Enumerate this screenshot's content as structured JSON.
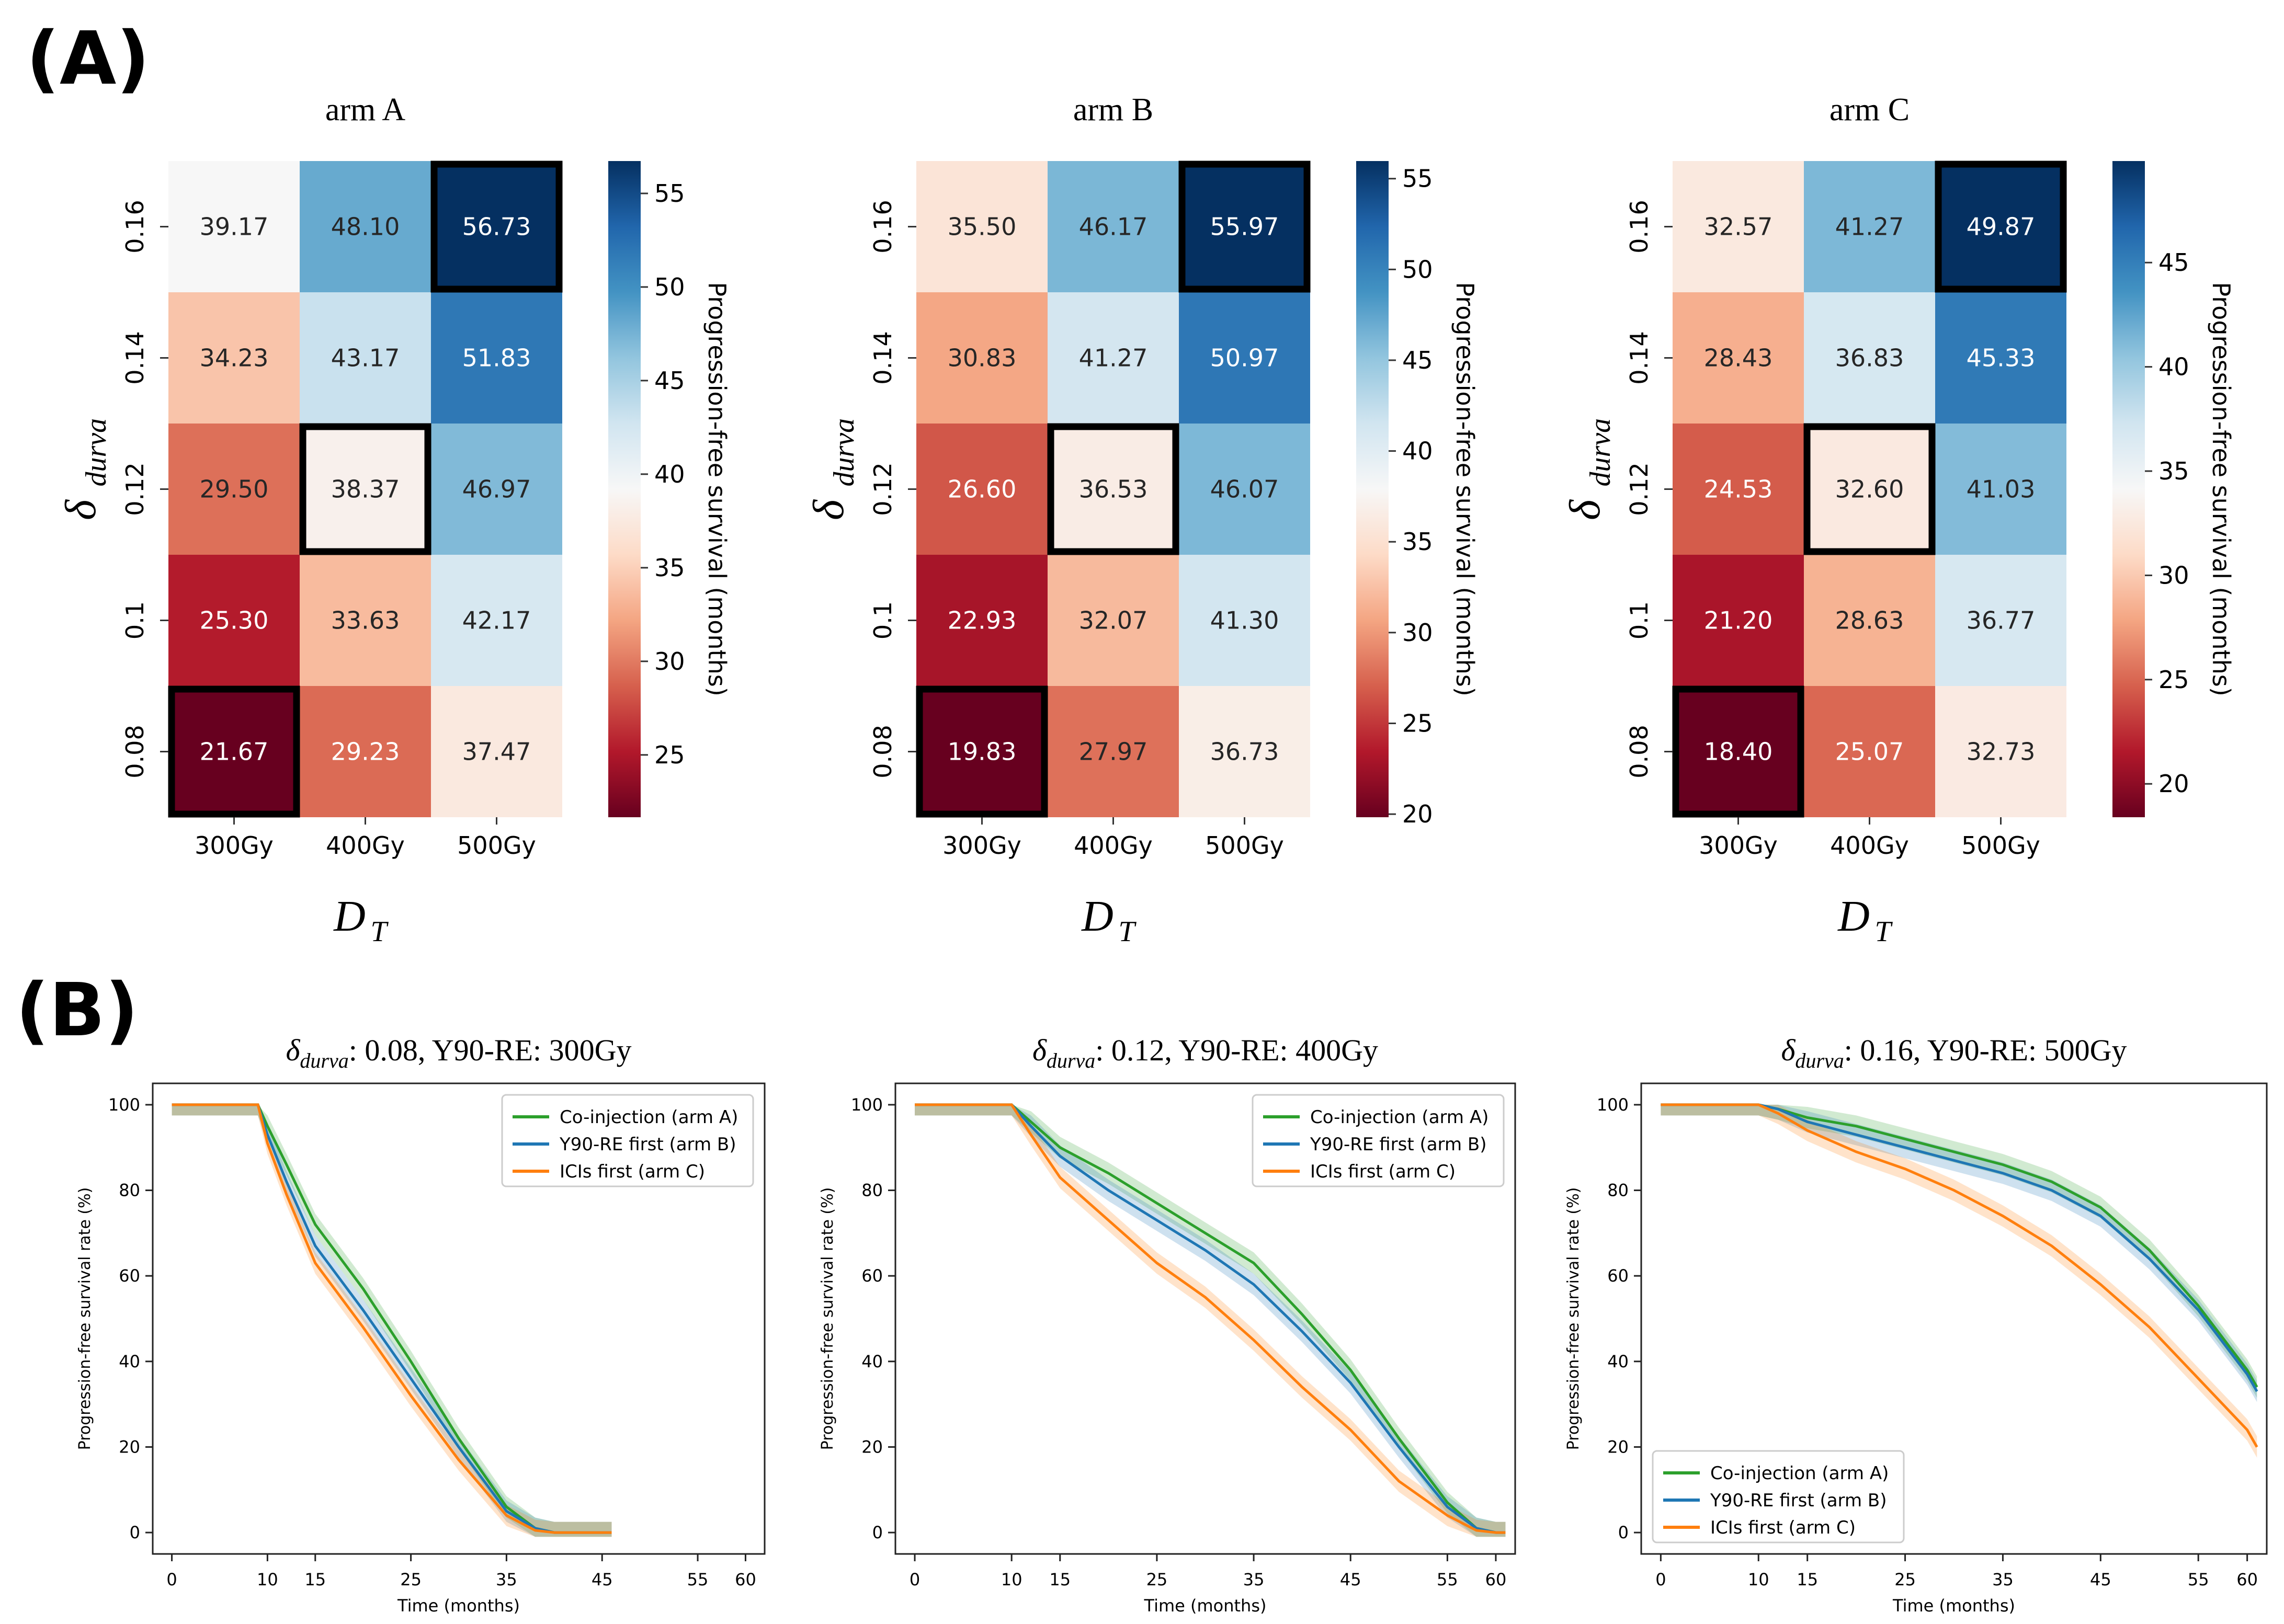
{
  "panel_labels": {
    "a": "(A)",
    "b": "(B)"
  },
  "chart_data": [
    {
      "type": "heatmap",
      "title": "arm A",
      "xlabel": "D",
      "xlabel_sub": "T",
      "ylabel": "δ",
      "ylabel_sub": "durva",
      "x_categories": [
        "300Gy",
        "400Gy",
        "500Gy"
      ],
      "y_categories": [
        "0.16",
        "0.14",
        "0.12",
        "0.1",
        "0.08"
      ],
      "values": [
        [
          39.17,
          48.1,
          56.73
        ],
        [
          34.23,
          43.17,
          51.83
        ],
        [
          29.5,
          38.37,
          46.97
        ],
        [
          25.3,
          33.63,
          42.17
        ],
        [
          21.67,
          29.23,
          37.47
        ]
      ],
      "labels": [
        [
          "39.17",
          "48.10",
          "56.73"
        ],
        [
          "34.23",
          "43.17",
          "51.83"
        ],
        [
          "29.50",
          "38.37",
          "46.97"
        ],
        [
          "25.30",
          "33.63",
          "42.17"
        ],
        [
          "21.67",
          "29.23",
          "37.47"
        ]
      ],
      "highlighted": [
        [
          0,
          2
        ],
        [
          2,
          1
        ],
        [
          4,
          0
        ]
      ],
      "colorbar": {
        "label": "Progression-free survival (months)",
        "range": [
          21.67,
          56.73
        ],
        "ticks": [
          "25",
          "30",
          "35",
          "40",
          "45",
          "50",
          "55"
        ]
      }
    },
    {
      "type": "heatmap",
      "title": "arm B",
      "xlabel": "D",
      "xlabel_sub": "T",
      "ylabel": "δ",
      "ylabel_sub": "durva",
      "x_categories": [
        "300Gy",
        "400Gy",
        "500Gy"
      ],
      "y_categories": [
        "0.16",
        "0.14",
        "0.12",
        "0.1",
        "0.08"
      ],
      "values": [
        [
          35.5,
          46.17,
          55.97
        ],
        [
          30.83,
          41.27,
          50.97
        ],
        [
          26.6,
          36.53,
          46.07
        ],
        [
          22.93,
          32.07,
          41.3
        ],
        [
          19.83,
          27.97,
          36.73
        ]
      ],
      "labels": [
        [
          "35.50",
          "46.17",
          "55.97"
        ],
        [
          "30.83",
          "41.27",
          "50.97"
        ],
        [
          "26.60",
          "36.53",
          "46.07"
        ],
        [
          "22.93",
          "32.07",
          "41.30"
        ],
        [
          "19.83",
          "27.97",
          "36.73"
        ]
      ],
      "highlighted": [
        [
          0,
          2
        ],
        [
          2,
          1
        ],
        [
          4,
          0
        ]
      ],
      "colorbar": {
        "label": "Progression-free survival (months)",
        "range": [
          19.83,
          55.97
        ],
        "ticks": [
          "20",
          "25",
          "30",
          "35",
          "40",
          "45",
          "50",
          "55"
        ]
      }
    },
    {
      "type": "heatmap",
      "title": "arm C",
      "xlabel": "D",
      "xlabel_sub": "T",
      "ylabel": "δ",
      "ylabel_sub": "durva",
      "x_categories": [
        "300Gy",
        "400Gy",
        "500Gy"
      ],
      "y_categories": [
        "0.16",
        "0.14",
        "0.12",
        "0.1",
        "0.08"
      ],
      "values": [
        [
          32.57,
          41.27,
          49.87
        ],
        [
          28.43,
          36.83,
          45.33
        ],
        [
          24.53,
          32.6,
          41.03
        ],
        [
          21.2,
          28.63,
          36.77
        ],
        [
          18.4,
          25.07,
          32.73
        ]
      ],
      "labels": [
        [
          "32.57",
          "41.27",
          "49.87"
        ],
        [
          "28.43",
          "36.83",
          "45.33"
        ],
        [
          "24.53",
          "32.60",
          "41.03"
        ],
        [
          "21.20",
          "28.63",
          "36.77"
        ],
        [
          "18.40",
          "25.07",
          "32.73"
        ]
      ],
      "highlighted": [
        [
          0,
          2
        ],
        [
          2,
          1
        ],
        [
          4,
          0
        ]
      ],
      "colorbar": {
        "label": "Progression-free survival (months)",
        "range": [
          18.4,
          49.87
        ],
        "ticks": [
          "20",
          "25",
          "30",
          "35",
          "40",
          "45"
        ]
      }
    },
    {
      "type": "line",
      "title_prefix": "δ",
      "title_sub": "durva",
      "title_rest": ": 0.08, Y90-RE: 300Gy",
      "xlabel": "Time (months)",
      "ylabel": "Progression-free survival rate (%)",
      "xlim": [
        -2,
        62
      ],
      "ylim": [
        -5,
        105
      ],
      "xticks": [
        "0",
        "10",
        "15",
        "25",
        "35",
        "45",
        "55",
        "60"
      ],
      "yticks": [
        "0",
        "20",
        "40",
        "60",
        "80",
        "100"
      ],
      "legend_position": "top-right",
      "series": [
        {
          "name": "Co-injection (arm A)",
          "color": "#2ca02c",
          "x": [
            0,
            8,
            9,
            10,
            12,
            15,
            20,
            25,
            30,
            35,
            38,
            40,
            46
          ],
          "y": [
            100,
            100,
            100,
            95,
            86,
            72,
            57,
            40,
            22,
            6,
            1,
            0,
            0
          ],
          "band": 2.5
        },
        {
          "name": "Y90-RE first (arm B)",
          "color": "#1f77b4",
          "x": [
            0,
            8,
            9,
            10,
            12,
            15,
            20,
            25,
            30,
            35,
            38,
            40,
            46
          ],
          "y": [
            100,
            100,
            100,
            93,
            82,
            67,
            52,
            36,
            20,
            5,
            1,
            0,
            0
          ],
          "band": 2.5
        },
        {
          "name": "ICIs first (arm C)",
          "color": "#ff7f0e",
          "x": [
            0,
            8,
            9,
            10,
            12,
            15,
            20,
            25,
            30,
            35,
            38,
            40,
            46
          ],
          "y": [
            100,
            100,
            100,
            91,
            79,
            63,
            48,
            32,
            17,
            4,
            0.5,
            0,
            0
          ],
          "band": 2.5
        }
      ]
    },
    {
      "type": "line",
      "title_prefix": "δ",
      "title_sub": "durva",
      "title_rest": ": 0.12, Y90-RE: 400Gy",
      "xlabel": "Time (months)",
      "ylabel": "Progression-free survival rate (%)",
      "xlim": [
        -2,
        62
      ],
      "ylim": [
        -5,
        105
      ],
      "xticks": [
        "0",
        "10",
        "15",
        "25",
        "35",
        "45",
        "55",
        "60"
      ],
      "yticks": [
        "0",
        "20",
        "40",
        "60",
        "80",
        "100"
      ],
      "legend_position": "top-right",
      "series": [
        {
          "name": "Co-injection (arm A)",
          "color": "#2ca02c",
          "x": [
            0,
            10,
            12,
            15,
            20,
            25,
            30,
            35,
            40,
            45,
            50,
            55,
            58,
            60,
            61
          ],
          "y": [
            100,
            100,
            96,
            90,
            84,
            77,
            70,
            63,
            51,
            38,
            22,
            7,
            1,
            0,
            0
          ],
          "band": 2.5
        },
        {
          "name": "Y90-RE first (arm B)",
          "color": "#1f77b4",
          "x": [
            0,
            10,
            12,
            15,
            20,
            25,
            30,
            35,
            40,
            45,
            50,
            55,
            58,
            60,
            61
          ],
          "y": [
            100,
            100,
            95,
            88,
            80,
            73,
            66,
            58,
            47,
            35,
            20,
            6,
            1,
            0,
            0
          ],
          "band": 2.5
        },
        {
          "name": "ICIs first (arm C)",
          "color": "#ff7f0e",
          "x": [
            0,
            10,
            12,
            15,
            20,
            25,
            30,
            35,
            40,
            45,
            50,
            55,
            58,
            60,
            61
          ],
          "y": [
            100,
            100,
            93,
            83,
            73,
            63,
            55,
            45,
            34,
            24,
            12,
            4,
            0.5,
            0,
            0
          ],
          "band": 2.5
        }
      ]
    },
    {
      "type": "line",
      "title_prefix": "δ",
      "title_sub": "durva",
      "title_rest": ": 0.16, Y90-RE: 500Gy",
      "xlabel": "Time (months)",
      "ylabel": "Progression-free survival rate (%)",
      "xlim": [
        -2,
        62
      ],
      "ylim": [
        -5,
        105
      ],
      "xticks": [
        "0",
        "10",
        "15",
        "25",
        "35",
        "45",
        "55",
        "60"
      ],
      "yticks": [
        "0",
        "20",
        "40",
        "60",
        "80",
        "100"
      ],
      "legend_position": "bottom-left",
      "series": [
        {
          "name": "Co-injection (arm A)",
          "color": "#2ca02c",
          "x": [
            0,
            10,
            12,
            15,
            20,
            25,
            30,
            35,
            40,
            45,
            50,
            55,
            60,
            61
          ],
          "y": [
            100,
            100,
            99,
            97,
            95,
            92,
            89,
            86,
            82,
            76,
            66,
            53,
            38,
            34
          ],
          "band": 2.5
        },
        {
          "name": "Y90-RE first (arm B)",
          "color": "#1f77b4",
          "x": [
            0,
            10,
            12,
            15,
            20,
            25,
            30,
            35,
            40,
            45,
            50,
            55,
            60,
            61
          ],
          "y": [
            100,
            100,
            99,
            96,
            93,
            90,
            87,
            84,
            80,
            74,
            64,
            52,
            37,
            33
          ],
          "band": 2.5
        },
        {
          "name": "ICIs first (arm C)",
          "color": "#ff7f0e",
          "x": [
            0,
            10,
            12,
            15,
            20,
            25,
            30,
            35,
            40,
            45,
            50,
            55,
            60,
            61
          ],
          "y": [
            100,
            100,
            98,
            94,
            89,
            85,
            80,
            74,
            67,
            58,
            48,
            36,
            24,
            20
          ],
          "band": 2.5
        }
      ]
    }
  ]
}
